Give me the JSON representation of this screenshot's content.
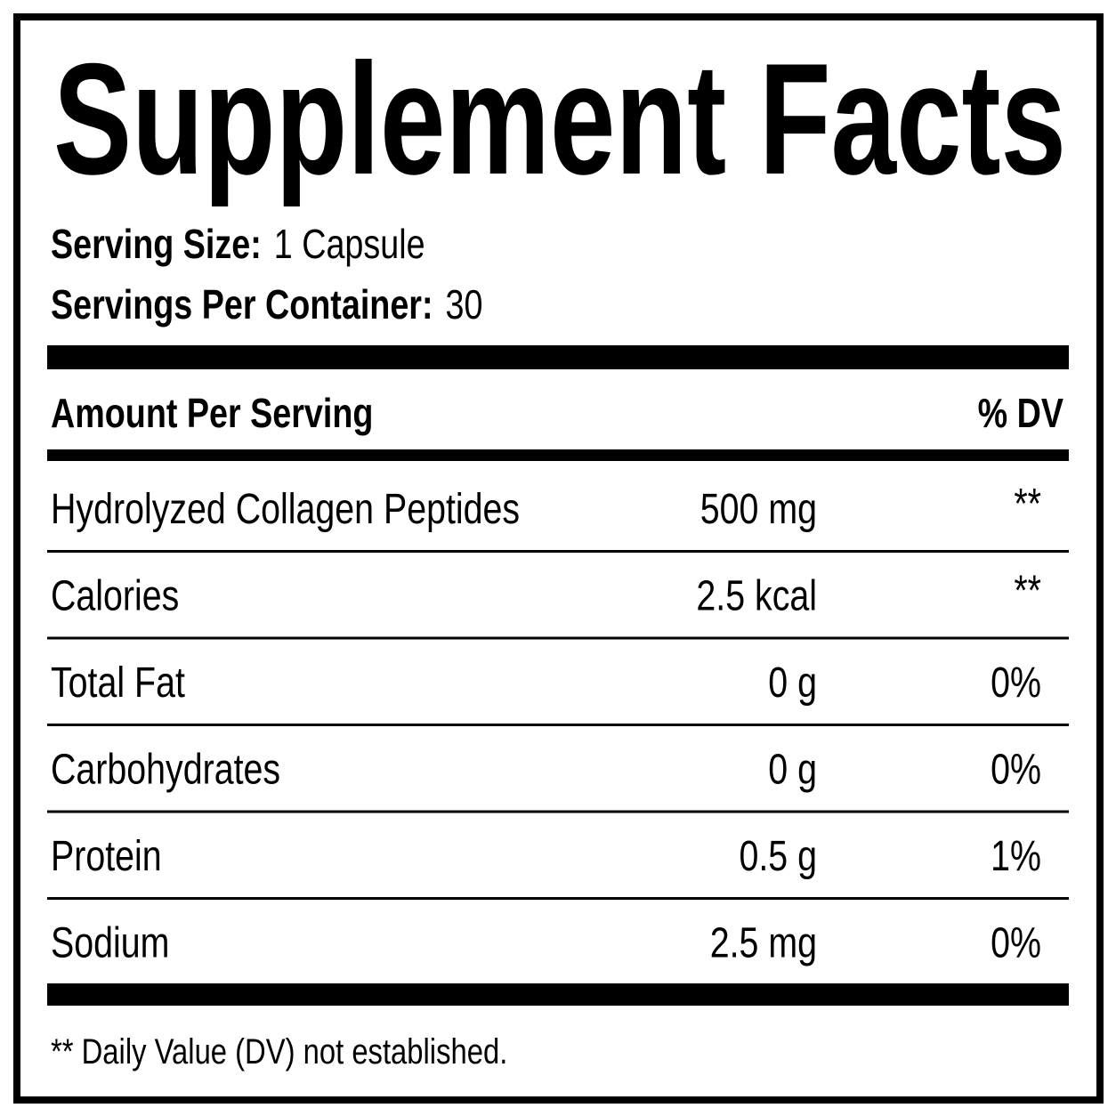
{
  "title": "Supplement Facts",
  "serving": [
    {
      "label": "Serving Size:",
      "value": "1 Capsule"
    },
    {
      "label": "Servings Per Container:",
      "value": "30"
    }
  ],
  "table": {
    "header": [
      "Amount Per Serving",
      "% DV"
    ],
    "rows": [
      [
        "Hydrolyzed Collagen Peptides",
        "500 mg",
        "**"
      ],
      [
        "Calories",
        "2.5 kcal",
        "**"
      ],
      [
        "Total Fat",
        "0 g",
        "0%"
      ],
      [
        "Carbohydrates",
        "0 g",
        "0%"
      ],
      [
        "Protein",
        "0.5 g",
        "1%"
      ],
      [
        "Sodium",
        "2.5 mg",
        "0%"
      ]
    ]
  },
  "footnote": "** Daily Value (DV) not established."
}
